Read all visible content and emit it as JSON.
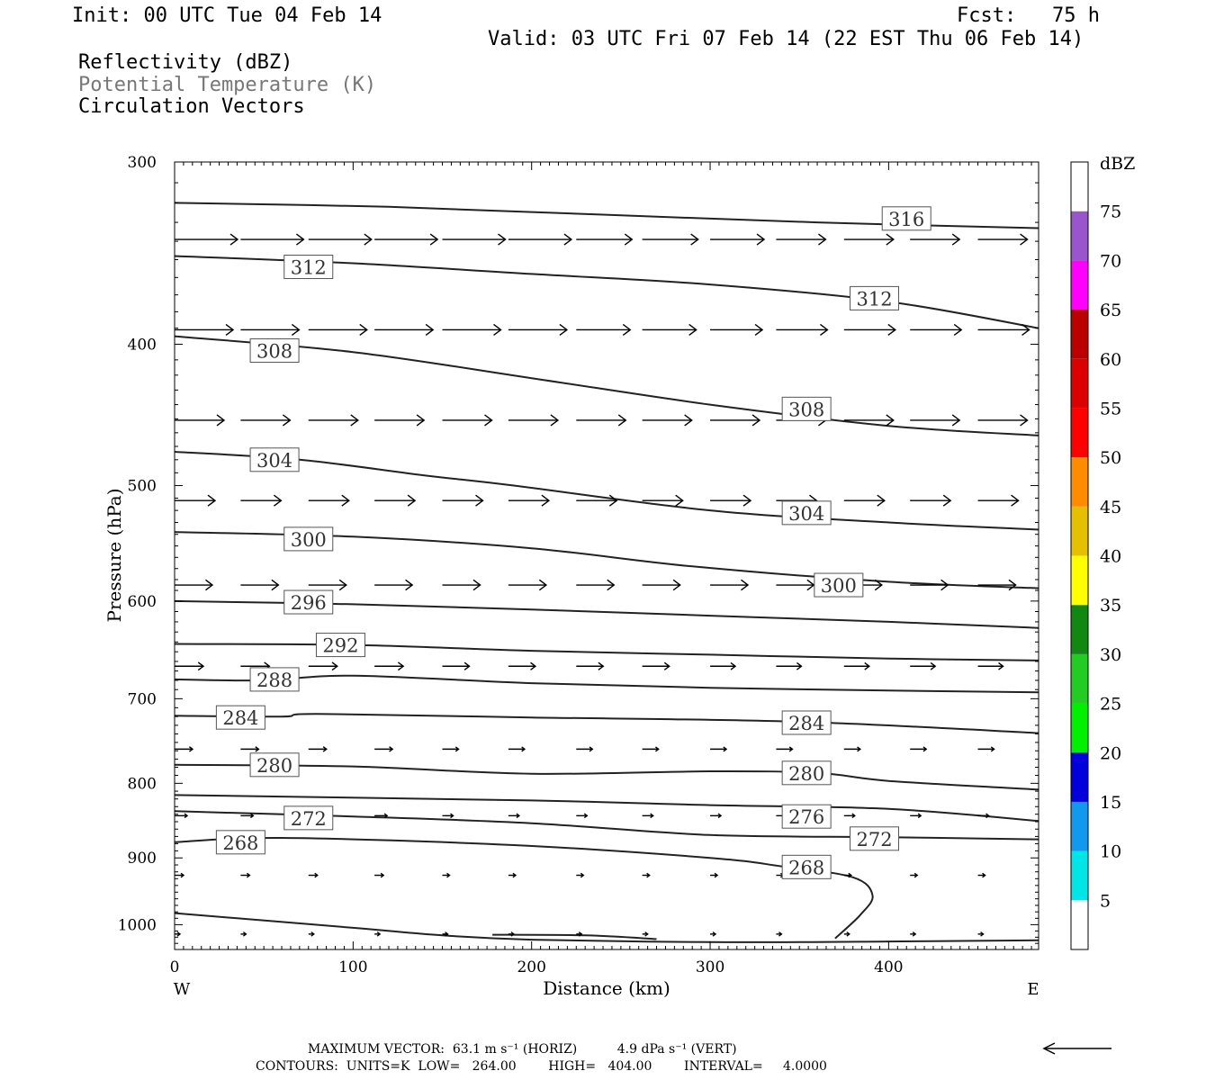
{
  "header": {
    "init": "Init: 00 UTC Tue 04 Feb 14",
    "fcst": "Fcst:   75 h",
    "valid": "Valid: 03 UTC Fri 07 Feb 14 (22 EST Thu 06 Feb 14)",
    "field1": "Reflectivity (dBZ)",
    "field2": "Potential Temperature (K)",
    "field3": "Circulation Vectors"
  },
  "colors": {
    "field2_text": "#777777",
    "contour": "#222222",
    "vector": "#000000"
  },
  "chart_data": {
    "type": "line",
    "xlabel": "Distance (km)",
    "ylabel": "Pressure (hPa)",
    "xlim": [
      0,
      484
    ],
    "ylim": [
      1040,
      300
    ],
    "y_scale": "log-pressure",
    "x_ticks": [
      "0",
      "100",
      "200",
      "300",
      "400"
    ],
    "y_ticks": [
      "300",
      "400",
      "500",
      "600",
      "700",
      "800",
      "900",
      "1000"
    ],
    "x_end_labels": {
      "left": "W",
      "right": "E"
    },
    "legend": {
      "title": "dBZ",
      "labels": [
        "5",
        "10",
        "15",
        "20",
        "25",
        "30",
        "35",
        "40",
        "45",
        "50",
        "55",
        "60",
        "65",
        "70",
        "75"
      ],
      "colors": [
        "#ffffff",
        "#00e5e5",
        "#1199ee",
        "#0000dd",
        "#00ee00",
        "#22cc22",
        "#118811",
        "#ffff00",
        "#e5c000",
        "#ff8c00",
        "#ff0000",
        "#dd0000",
        "#bb0000",
        "#ff00ff",
        "#9955cc",
        "#ffffff"
      ]
    },
    "contours": [
      {
        "label": "316",
        "points": [
          [
            0,
            320
          ],
          [
            120,
            322
          ],
          [
            240,
            326
          ],
          [
            360,
            330
          ],
          [
            484,
            333
          ]
        ],
        "label_at": [
          [
            410,
            328
          ]
        ]
      },
      {
        "label": "312",
        "points": [
          [
            0,
            348
          ],
          [
            100,
            352
          ],
          [
            200,
            358
          ],
          [
            300,
            364
          ],
          [
            400,
            374
          ],
          [
            484,
            390
          ]
        ],
        "label_at": [
          [
            75,
            354
          ],
          [
            392,
            372
          ]
        ]
      },
      {
        "label": "308",
        "points": [
          [
            0,
            395
          ],
          [
            100,
            405
          ],
          [
            200,
            422
          ],
          [
            300,
            440
          ],
          [
            400,
            455
          ],
          [
            484,
            462
          ]
        ],
        "label_at": [
          [
            56,
            404
          ],
          [
            354,
            443
          ]
        ]
      },
      {
        "label": "304",
        "points": [
          [
            0,
            474
          ],
          [
            70,
            480
          ],
          [
            140,
            492
          ],
          [
            190,
            500
          ],
          [
            300,
            520
          ],
          [
            400,
            530
          ],
          [
            484,
            536
          ]
        ],
        "label_at": [
          [
            56,
            480
          ],
          [
            354,
            522
          ]
        ]
      },
      {
        "label": "300",
        "points": [
          [
            0,
            538
          ],
          [
            100,
            542
          ],
          [
            200,
            552
          ],
          [
            290,
            568
          ],
          [
            400,
            582
          ],
          [
            484,
            588
          ]
        ],
        "label_at": [
          [
            75,
            544
          ],
          [
            372,
            585
          ]
        ]
      },
      {
        "label": "296",
        "points": [
          [
            0,
            600
          ],
          [
            100,
            603
          ],
          [
            200,
            608
          ],
          [
            300,
            614
          ],
          [
            400,
            620
          ],
          [
            484,
            626
          ]
        ],
        "label_at": [
          [
            75,
            601
          ]
        ]
      },
      {
        "label": "292",
        "points": [
          [
            0,
            642
          ],
          [
            100,
            643
          ],
          [
            200,
            649
          ],
          [
            300,
            653
          ],
          [
            400,
            657
          ],
          [
            484,
            659
          ]
        ],
        "label_at": [
          [
            93,
            643
          ]
        ]
      },
      {
        "label": "288",
        "points": [
          [
            0,
            679
          ],
          [
            50,
            680
          ],
          [
            100,
            675
          ],
          [
            200,
            683
          ],
          [
            300,
            688
          ],
          [
            400,
            691
          ],
          [
            484,
            693
          ]
        ],
        "label_at": [
          [
            56,
            679
          ]
        ]
      },
      {
        "label": "284",
        "points": [
          [
            0,
            719
          ],
          [
            60,
            720
          ],
          [
            80,
            717
          ],
          [
            200,
            721
          ],
          [
            350,
            726
          ],
          [
            484,
            739
          ]
        ],
        "label_at": [
          [
            37,
            721
          ],
          [
            354,
            727
          ]
        ]
      },
      {
        "label": "280",
        "points": [
          [
            0,
            777
          ],
          [
            100,
            779
          ],
          [
            200,
            788
          ],
          [
            300,
            785
          ],
          [
            360,
            787
          ],
          [
            400,
            797
          ],
          [
            484,
            808
          ]
        ],
        "label_at": [
          [
            56,
            777
          ],
          [
            354,
            787
          ]
        ]
      },
      {
        "label": "276",
        "points": [
          [
            0,
            815
          ],
          [
            200,
            822
          ],
          [
            300,
            828
          ],
          [
            400,
            833
          ],
          [
            484,
            849
          ]
        ],
        "label_at": [
          [
            354,
            843
          ]
        ]
      },
      {
        "label": "272",
        "points": [
          [
            0,
            836
          ],
          [
            100,
            843
          ],
          [
            200,
            852
          ],
          [
            300,
            868
          ],
          [
            400,
            871
          ],
          [
            484,
            874
          ]
        ],
        "label_at": [
          [
            75,
            845
          ],
          [
            392,
            873
          ]
        ]
      },
      {
        "label": "268",
        "points": [
          [
            0,
            878
          ],
          [
            60,
            872
          ],
          [
            190,
            882
          ],
          [
            300,
            900
          ],
          [
            340,
            912
          ],
          [
            380,
            928
          ],
          [
            391,
            955
          ],
          [
            384,
            985
          ],
          [
            370,
            1022
          ]
        ],
        "label_at": [
          [
            37,
            878
          ],
          [
            354,
            913
          ]
        ]
      },
      {
        "label": "",
        "points": [
          [
            0,
            982
          ],
          [
            100,
            1005
          ],
          [
            150,
            1017
          ],
          [
            200,
            1024
          ],
          [
            300,
            1028
          ],
          [
            400,
            1027
          ],
          [
            484,
            1025
          ]
        ],
        "label_at": []
      },
      {
        "label": "",
        "points": [
          [
            178,
            1016
          ],
          [
            230,
            1017
          ],
          [
            270,
            1023
          ]
        ],
        "label_at": []
      }
    ],
    "vector_rows": [
      {
        "p": 339,
        "x": [
          0,
          37,
          75,
          112,
          150,
          187,
          225,
          262,
          300,
          337,
          375,
          412,
          450
        ],
        "len": [
          70,
          70,
          70,
          70,
          70,
          70,
          62,
          62,
          60,
          55,
          55,
          55,
          55
        ]
      },
      {
        "p": 391,
        "x": [
          0,
          37,
          75,
          112,
          150,
          187,
          225,
          262,
          300,
          337,
          375,
          412,
          450
        ],
        "len": [
          65,
          65,
          65,
          65,
          65,
          65,
          60,
          60,
          58,
          57,
          57,
          57,
          57
        ]
      },
      {
        "p": 451,
        "x": [
          0,
          37,
          75,
          112,
          150,
          187,
          225,
          262,
          300,
          337,
          375,
          412,
          450
        ],
        "len": [
          55,
          55,
          55,
          55,
          55,
          55,
          55,
          55,
          55,
          55,
          55,
          55,
          55
        ]
      },
      {
        "p": 512,
        "x": [
          0,
          37,
          75,
          112,
          150,
          187,
          225,
          262,
          300,
          337,
          375,
          412,
          450
        ],
        "len": [
          45,
          45,
          45,
          45,
          45,
          45,
          45,
          45,
          45,
          45,
          45,
          45,
          45
        ]
      },
      {
        "p": 585,
        "x": [
          0,
          37,
          75,
          112,
          150,
          187,
          225,
          262,
          300,
          337,
          375,
          412,
          450
        ],
        "len": [
          42,
          42,
          42,
          42,
          42,
          42,
          42,
          42,
          42,
          42,
          42,
          42,
          42
        ]
      },
      {
        "p": 665,
        "x": [
          0,
          37,
          75,
          112,
          150,
          187,
          225,
          262,
          300,
          337,
          375,
          412,
          450
        ],
        "len": [
          32,
          32,
          32,
          32,
          30,
          30,
          30,
          30,
          28,
          28,
          28,
          28,
          28
        ]
      },
      {
        "p": 758,
        "x": [
          0,
          37,
          75,
          112,
          150,
          187,
          225,
          262,
          300,
          337,
          375,
          412,
          450
        ],
        "len": [
          20,
          20,
          20,
          20,
          18,
          18,
          18,
          18,
          18,
          18,
          18,
          18,
          18
        ]
      },
      {
        "p": 842,
        "x": [
          0,
          37,
          75,
          112,
          150,
          187,
          225,
          262,
          300,
          337,
          375,
          412,
          450
        ],
        "len": [
          14,
          14,
          14,
          14,
          12,
          12,
          12,
          12,
          12,
          12,
          12,
          12,
          12
        ]
      },
      {
        "p": 925,
        "x": [
          0,
          37,
          75,
          112,
          150,
          187,
          225,
          262,
          300,
          337,
          375,
          412,
          450
        ],
        "len": [
          10,
          10,
          10,
          10,
          8,
          8,
          8,
          8,
          8,
          8,
          8,
          8,
          8
        ]
      },
      {
        "p": 1015,
        "x": [
          0,
          37,
          75,
          112,
          150,
          187,
          225,
          262,
          300,
          337,
          375,
          412,
          450
        ],
        "len": [
          6,
          6,
          6,
          6,
          6,
          6,
          6,
          6,
          6,
          6,
          6,
          6,
          6
        ]
      }
    ]
  },
  "footer": {
    "max_vector": "MAXIMUM VECTOR:  63.1 m s⁻¹ (HORIZ)          4.9 dPa s⁻¹ (VERT)",
    "contours": "CONTOURS:  UNITS=K  LOW=   264.00        HIGH=   404.00        INTERVAL=     4.0000"
  }
}
